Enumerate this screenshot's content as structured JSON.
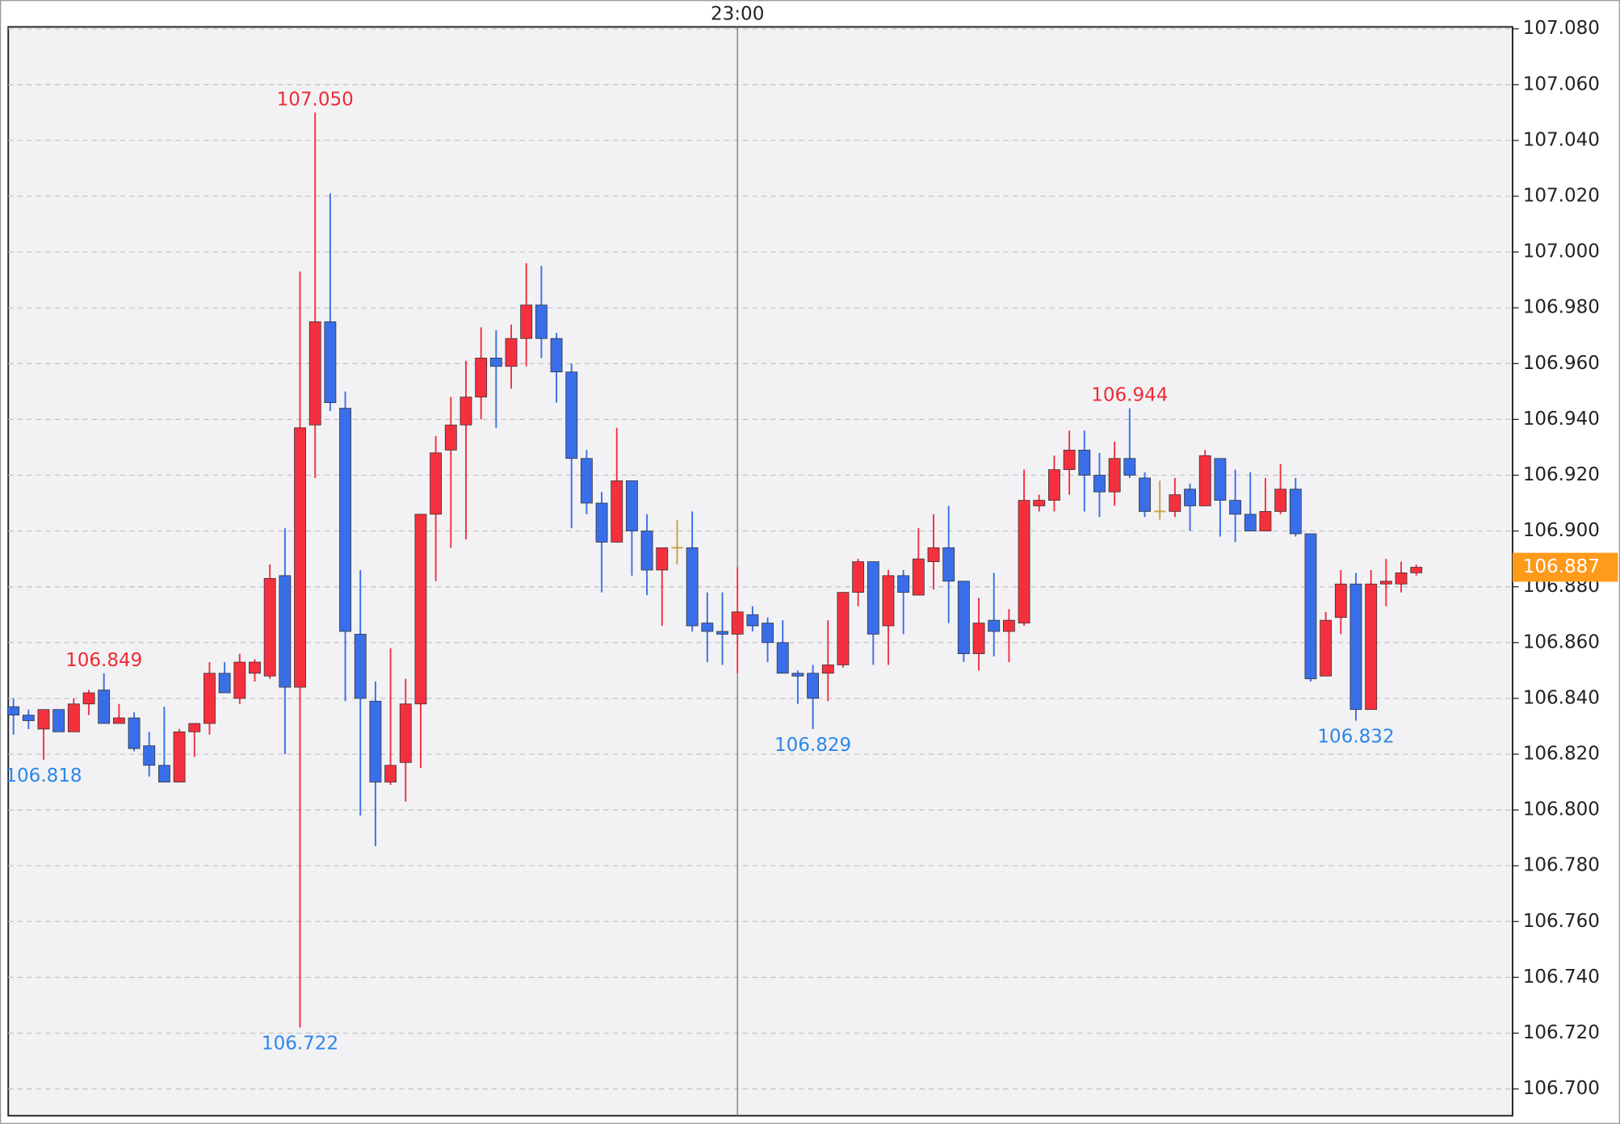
{
  "chart_data": {
    "type": "candlestick",
    "categories": [
      null,
      null,
      null,
      null,
      null,
      null,
      null,
      null,
      null,
      null,
      null,
      null,
      null,
      null,
      null,
      null,
      null,
      null,
      null,
      null,
      null,
      null,
      null,
      null,
      null,
      null,
      null,
      null,
      null,
      null,
      null,
      null,
      null,
      null,
      null,
      null,
      null,
      null,
      null,
      null,
      null,
      null,
      null,
      null,
      null,
      null,
      null,
      null,
      "23:00",
      null,
      null,
      null,
      null,
      null,
      null,
      null,
      null,
      null,
      null,
      null,
      null,
      null,
      null,
      null,
      null,
      null,
      null,
      null,
      null,
      null,
      null,
      null,
      null,
      null,
      null,
      null,
      null,
      null,
      null,
      null,
      null,
      null,
      null,
      null,
      null,
      null,
      null,
      null,
      null,
      null,
      null,
      null,
      null,
      null
    ],
    "open": [
      106.837,
      106.834,
      106.829,
      106.836,
      106.828,
      106.838,
      106.843,
      106.831,
      106.833,
      106.823,
      106.816,
      106.81,
      106.828,
      106.831,
      106.849,
      106.84,
      106.849,
      106.848,
      106.884,
      106.844,
      106.938,
      106.975,
      106.944,
      106.863,
      106.839,
      106.81,
      106.817,
      106.838,
      106.906,
      106.929,
      106.938,
      106.948,
      106.962,
      106.959,
      106.969,
      106.981,
      106.969,
      106.957,
      106.926,
      106.91,
      106.896,
      106.918,
      106.9,
      106.886,
      106.894,
      106.894,
      106.867,
      106.864,
      106.863,
      106.87,
      106.867,
      106.86,
      106.849,
      106.849,
      106.849,
      106.852,
      106.878,
      106.889,
      106.866,
      106.884,
      106.877,
      106.889,
      106.894,
      106.882,
      106.856,
      106.868,
      106.864,
      106.867,
      106.909,
      106.911,
      106.922,
      106.929,
      106.92,
      106.914,
      106.926,
      106.919,
      106.907,
      106.907,
      106.915,
      106.909,
      106.926,
      106.911,
      106.906,
      106.9,
      106.907,
      106.915,
      106.899,
      106.848,
      106.869,
      106.881,
      106.836,
      106.881,
      106.881,
      106.885
    ],
    "high": [
      106.84,
      106.836,
      106.836,
      106.836,
      106.84,
      106.843,
      106.849,
      106.838,
      106.835,
      106.828,
      106.837,
      106.829,
      106.831,
      106.853,
      106.853,
      106.856,
      106.854,
      106.888,
      106.901,
      106.993,
      107.05,
      107.021,
      106.95,
      106.886,
      106.846,
      106.858,
      106.847,
      106.906,
      106.934,
      106.948,
      106.961,
      106.973,
      106.972,
      106.974,
      106.996,
      106.995,
      106.971,
      106.96,
      106.929,
      106.914,
      106.937,
      106.918,
      106.906,
      106.894,
      106.904,
      106.907,
      106.878,
      106.878,
      106.887,
      106.873,
      106.869,
      106.868,
      106.85,
      106.852,
      106.868,
      106.878,
      106.89,
      106.889,
      106.886,
      106.886,
      106.901,
      106.906,
      106.909,
      106.882,
      106.876,
      106.885,
      106.872,
      106.922,
      106.913,
      106.927,
      106.936,
      106.936,
      106.928,
      106.932,
      106.944,
      106.921,
      106.918,
      106.919,
      106.917,
      106.929,
      106.926,
      106.922,
      106.921,
      106.919,
      106.924,
      106.919,
      106.899,
      106.871,
      106.886,
      106.885,
      106.886,
      106.89,
      106.889,
      106.888
    ],
    "low": [
      106.827,
      106.829,
      106.818,
      106.828,
      106.828,
      106.834,
      106.831,
      106.831,
      106.821,
      106.812,
      106.81,
      106.81,
      106.819,
      106.827,
      106.842,
      106.838,
      106.846,
      106.847,
      106.82,
      106.722,
      106.919,
      106.943,
      106.839,
      106.798,
      106.787,
      106.809,
      106.803,
      106.815,
      106.882,
      106.894,
      106.897,
      106.94,
      106.937,
      106.951,
      106.959,
      106.962,
      106.946,
      106.901,
      106.906,
      106.878,
      106.896,
      106.884,
      106.877,
      106.866,
      106.888,
      106.864,
      106.853,
      106.852,
      106.849,
      106.864,
      106.853,
      106.849,
      106.838,
      106.829,
      106.839,
      106.851,
      106.873,
      106.852,
      106.852,
      106.863,
      106.877,
      106.879,
      106.867,
      106.853,
      106.85,
      106.855,
      106.853,
      106.866,
      106.907,
      106.907,
      106.913,
      106.907,
      106.905,
      106.909,
      106.919,
      106.905,
      106.904,
      106.905,
      106.9,
      106.909,
      106.898,
      106.896,
      106.9,
      106.9,
      106.906,
      106.898,
      106.846,
      106.848,
      106.863,
      106.832,
      106.836,
      106.873,
      106.878,
      106.884
    ],
    "close": [
      106.834,
      106.832,
      106.836,
      106.828,
      106.838,
      106.842,
      106.831,
      106.833,
      106.822,
      106.816,
      106.81,
      106.828,
      106.831,
      106.849,
      106.842,
      106.853,
      106.853,
      106.883,
      106.844,
      106.937,
      106.975,
      106.946,
      106.864,
      106.84,
      106.81,
      106.816,
      106.838,
      106.906,
      106.928,
      106.938,
      106.948,
      106.962,
      106.959,
      106.969,
      106.981,
      106.969,
      106.957,
      106.926,
      106.91,
      106.896,
      106.918,
      106.9,
      106.886,
      106.894,
      106.894,
      106.866,
      106.864,
      106.863,
      106.871,
      106.866,
      106.86,
      106.849,
      106.848,
      106.84,
      106.852,
      106.878,
      106.889,
      106.863,
      106.884,
      106.878,
      106.89,
      106.894,
      106.882,
      106.856,
      106.867,
      106.864,
      106.868,
      106.911,
      106.911,
      106.922,
      106.929,
      106.92,
      106.914,
      106.926,
      106.92,
      106.907,
      106.907,
      106.913,
      106.909,
      106.927,
      106.911,
      106.906,
      106.9,
      106.907,
      106.915,
      106.899,
      106.847,
      106.868,
      106.881,
      106.836,
      106.881,
      106.882,
      106.885,
      106.887
    ],
    "high_labels": [
      null,
      null,
      null,
      null,
      null,
      null,
      "106.849",
      null,
      null,
      null,
      null,
      null,
      null,
      null,
      null,
      null,
      null,
      null,
      null,
      null,
      "107.050",
      null,
      null,
      null,
      null,
      null,
      null,
      null,
      null,
      null,
      null,
      null,
      null,
      null,
      null,
      null,
      null,
      null,
      null,
      null,
      null,
      null,
      null,
      null,
      null,
      null,
      null,
      null,
      null,
      null,
      null,
      null,
      null,
      null,
      null,
      null,
      null,
      null,
      null,
      null,
      null,
      null,
      null,
      null,
      null,
      null,
      null,
      null,
      null,
      null,
      null,
      null,
      null,
      null,
      "106.944",
      null,
      null,
      null,
      null,
      null,
      null,
      null,
      null,
      null,
      null,
      null,
      null,
      null,
      null,
      null,
      null,
      null,
      null,
      null
    ],
    "low_labels": [
      null,
      null,
      "106.818",
      null,
      null,
      null,
      null,
      null,
      null,
      null,
      null,
      null,
      null,
      null,
      null,
      null,
      null,
      null,
      null,
      "106.722",
      null,
      null,
      null,
      null,
      null,
      null,
      null,
      null,
      null,
      null,
      null,
      null,
      null,
      null,
      null,
      null,
      null,
      null,
      null,
      null,
      null,
      null,
      null,
      null,
      null,
      null,
      null,
      null,
      null,
      null,
      null,
      null,
      null,
      "106.829",
      null,
      null,
      null,
      null,
      null,
      null,
      null,
      null,
      null,
      null,
      null,
      null,
      null,
      null,
      null,
      null,
      null,
      null,
      null,
      null,
      null,
      null,
      null,
      null,
      null,
      null,
      null,
      null,
      null,
      null,
      null,
      null,
      null,
      null,
      null,
      "106.832",
      null,
      null,
      null,
      null
    ],
    "up_color": "#f5303e",
    "down_color": "#3a6ee8",
    "flat_color": "#c8a040",
    "high_label_color": "#ee2b35",
    "low_label_color": "#2c86e8",
    "last_price": 106.887,
    "last_price_color": "#ff9a1a",
    "ylim": [
      106.6904,
      107.0807
    ],
    "yticks": [
      {
        "value": 107.08,
        "label": "107.080"
      },
      {
        "value": 107.06,
        "label": "107.060"
      },
      {
        "value": 107.04,
        "label": "107.040"
      },
      {
        "value": 107.02,
        "label": "107.020"
      },
      {
        "value": 107.0,
        "label": "107.000"
      },
      {
        "value": 106.98,
        "label": "106.980"
      },
      {
        "value": 106.96,
        "label": "106.960"
      },
      {
        "value": 106.94,
        "label": "106.940"
      },
      {
        "value": 106.92,
        "label": "106.920"
      },
      {
        "value": 106.9,
        "label": "106.900"
      },
      {
        "value": 106.88,
        "label": "106.880"
      },
      {
        "value": 106.86,
        "label": "106.860"
      },
      {
        "value": 106.84,
        "label": "106.840"
      },
      {
        "value": 106.82,
        "label": "106.820"
      },
      {
        "value": 106.8,
        "label": "106.800"
      },
      {
        "value": 106.78,
        "label": "106.780"
      },
      {
        "value": 106.76,
        "label": "106.760"
      },
      {
        "value": 106.74,
        "label": "106.740"
      },
      {
        "value": 106.72,
        "label": "106.720"
      },
      {
        "value": 106.7,
        "label": "106.700"
      }
    ],
    "grid": true
  }
}
